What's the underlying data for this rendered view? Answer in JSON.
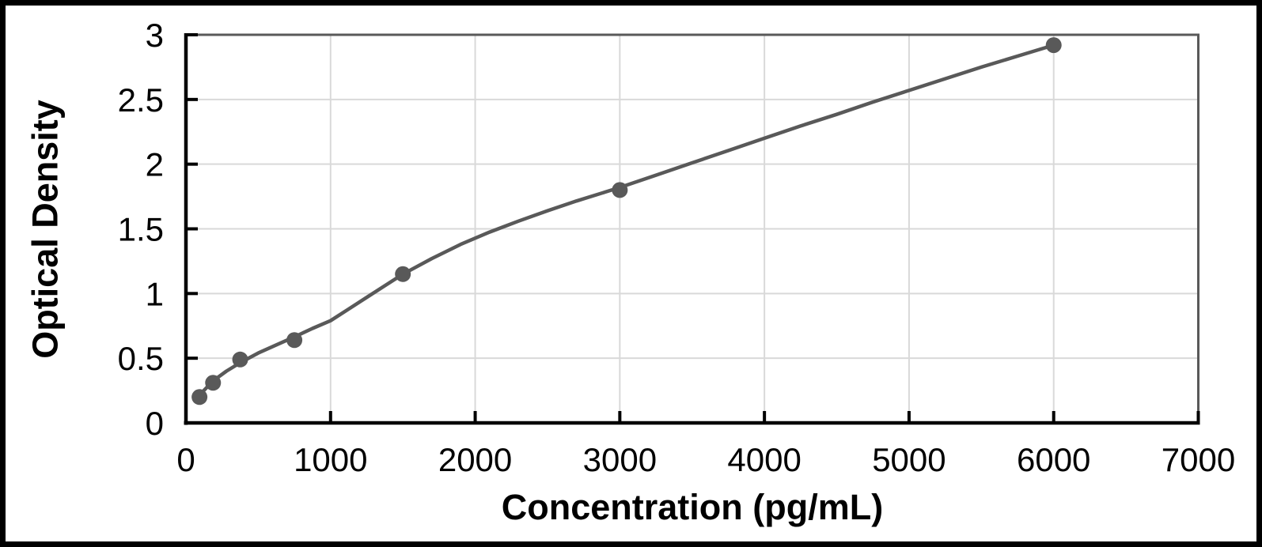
{
  "figure": {
    "background": "#ffffff",
    "border_color": "#000000"
  },
  "chart_data": {
    "type": "scatter",
    "title": "",
    "xlabel": "Concentration (pg/mL)",
    "ylabel": "Optical Density",
    "xlim": [
      0,
      7000
    ],
    "ylim": [
      0,
      3
    ],
    "grid": true,
    "legend_position": "none",
    "x_ticks": [
      0,
      1000,
      2000,
      3000,
      4000,
      5000,
      6000,
      7000
    ],
    "x_tick_labels": [
      "0",
      "1000",
      "2000",
      "3000",
      "4000",
      "5000",
      "6000",
      "7000"
    ],
    "y_ticks": [
      0,
      0.5,
      1,
      1.5,
      2,
      2.5,
      3
    ],
    "y_tick_labels": [
      "0",
      "0.5",
      "1",
      "1.5",
      "2",
      "2.5",
      "3"
    ],
    "colors": {
      "series": "#595959",
      "gridline": "#d9d9d9",
      "frame": "#595959",
      "axis": "#000000",
      "text": "#000000"
    },
    "series": [
      {
        "name": "standard-data-points",
        "type": "scatter",
        "marker": "circle",
        "color": "#595959",
        "x": [
          93.75,
          187.5,
          375,
          750,
          1500,
          3000,
          6000
        ],
        "y": [
          0.2,
          0.31,
          0.49,
          0.64,
          1.15,
          1.8,
          2.92
        ]
      },
      {
        "name": "fitted-curve",
        "type": "line",
        "color": "#595959",
        "x": [
          94,
          187.5,
          280,
          375,
          500,
          650,
          750,
          875,
          1000,
          1125,
          1250,
          1375,
          1500,
          1700,
          1900,
          2100,
          2300,
          2500,
          2700,
          2900,
          3000,
          3250,
          3500,
          3750,
          4000,
          4250,
          4500,
          4750,
          5000,
          5250,
          5500,
          5750,
          6000
        ],
        "y": [
          0.215,
          0.325,
          0.4,
          0.465,
          0.54,
          0.615,
          0.665,
          0.73,
          0.79,
          0.88,
          0.97,
          1.06,
          1.15,
          1.27,
          1.38,
          1.475,
          1.56,
          1.64,
          1.715,
          1.785,
          1.82,
          1.915,
          2.01,
          2.105,
          2.2,
          2.295,
          2.385,
          2.48,
          2.57,
          2.66,
          2.75,
          2.835,
          2.92
        ]
      }
    ]
  }
}
